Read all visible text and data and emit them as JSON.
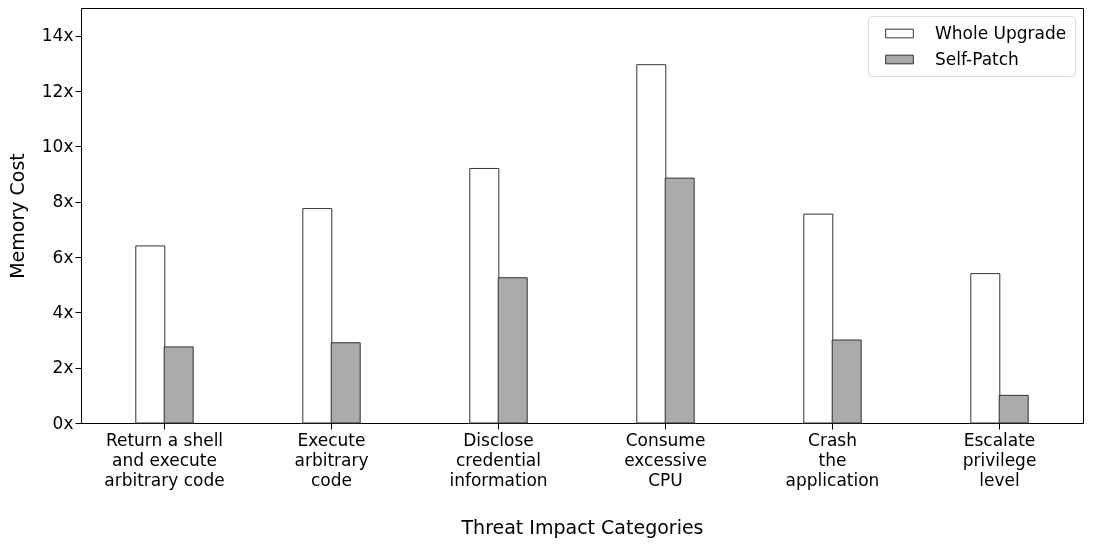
{
  "chart_data": {
    "type": "bar",
    "xlabel": "Threat Impact Categories",
    "ylabel": "Memory Cost",
    "categories": [
      "Return a shell\nand execute\narbitrary code",
      "Execute\narbitrary\ncode",
      "Disclose\ncredential\ninformation",
      "Consume\nexcessive\nCPU",
      "Crash\nthe\napplication",
      "Escalate\nprivilege\nlevel"
    ],
    "series": [
      {
        "name": "Whole Upgrade",
        "color": "#ffffff",
        "values": [
          6.4,
          7.75,
          9.2,
          12.95,
          7.55,
          5.4
        ]
      },
      {
        "name": "Self-Patch",
        "color": "#aaaaaa",
        "values": [
          2.75,
          2.9,
          5.25,
          8.85,
          3.0,
          1.0
        ]
      }
    ],
    "ylim": [
      0,
      15
    ],
    "yticks": [
      {
        "value": 0,
        "label": "0x"
      },
      {
        "value": 2,
        "label": "2x"
      },
      {
        "value": 4,
        "label": "4x"
      },
      {
        "value": 6,
        "label": "6x"
      },
      {
        "value": 8,
        "label": "8x"
      },
      {
        "value": 10,
        "label": "10x"
      },
      {
        "value": 12,
        "label": "12x"
      },
      {
        "value": 14,
        "label": "14x"
      }
    ],
    "grid": false,
    "legend": "top right"
  }
}
